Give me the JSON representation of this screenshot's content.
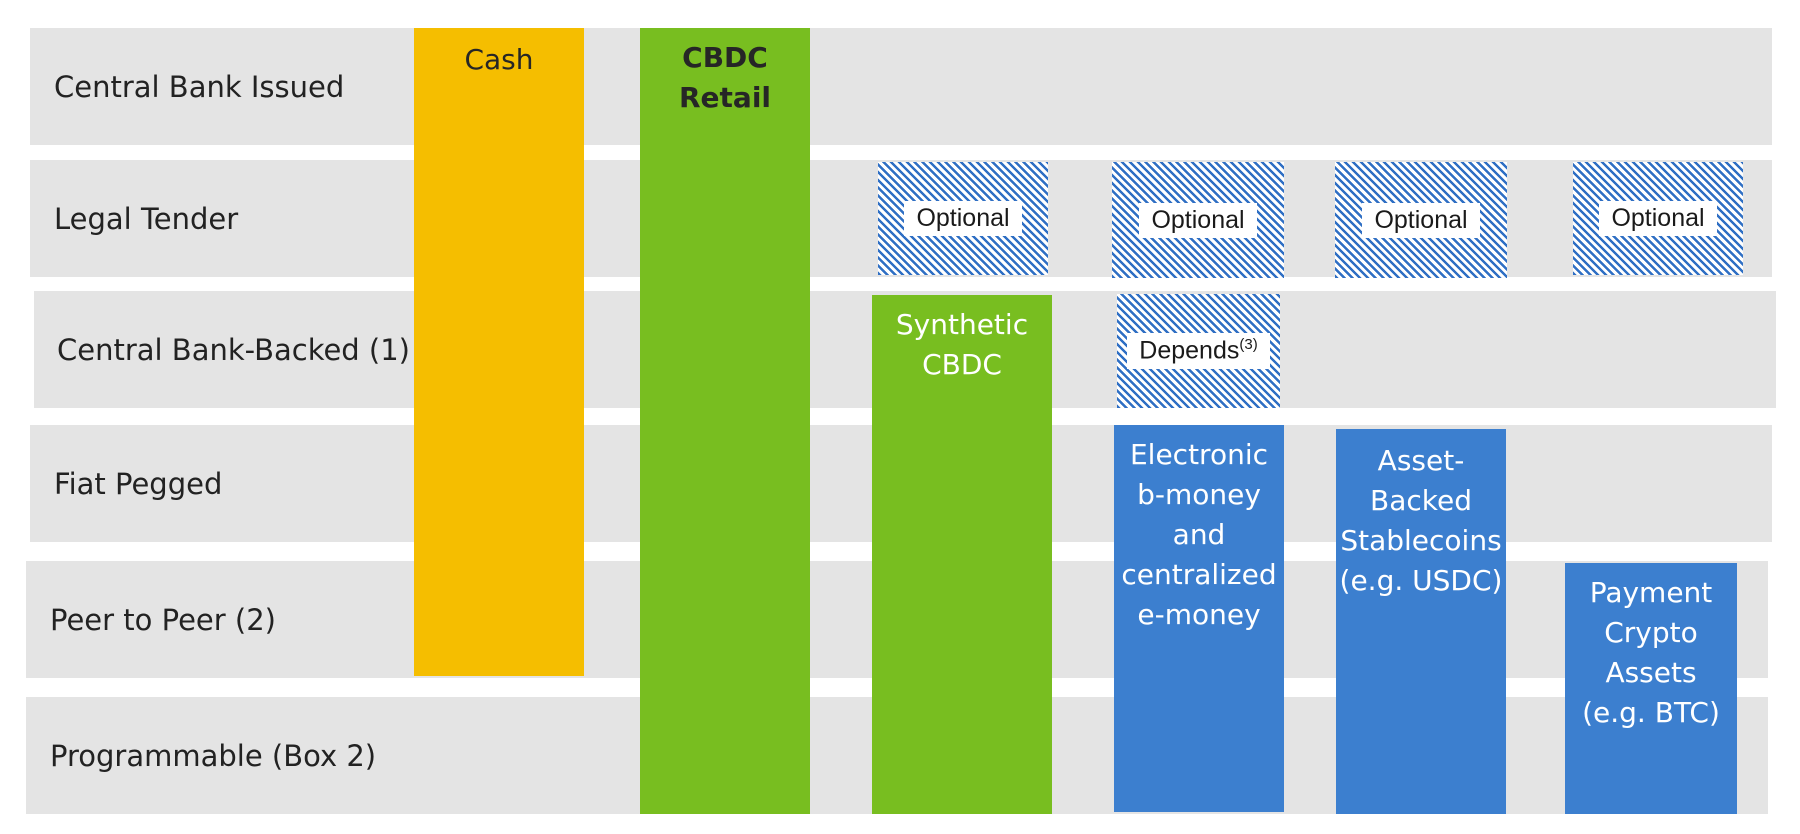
{
  "rows": [
    {
      "key": "issued",
      "label": "Central Bank Issued"
    },
    {
      "key": "legal",
      "label": "Legal Tender"
    },
    {
      "key": "backed",
      "label": "Central Bank-Backed (1)"
    },
    {
      "key": "pegged",
      "label": "Fiat Pegged"
    },
    {
      "key": "p2p",
      "label": "Peer to Peer (2)"
    },
    {
      "key": "prog",
      "label": "Programmable (Box 2)"
    }
  ],
  "columns": {
    "cash": {
      "label": "Cash",
      "color": "#f5be00"
    },
    "cbdc_retail": {
      "line1": "CBDC",
      "line2": "Retail",
      "color": "#78be20"
    },
    "synthetic_cbdc": {
      "line1": "Synthetic",
      "line2": "CBDC",
      "color": "#78be20"
    },
    "emoney": {
      "lines": [
        "Electronic",
        "b-money",
        "and",
        "centralized",
        "e-money"
      ],
      "color": "#3c7fcf"
    },
    "stablecoins": {
      "lines": [
        "Asset-",
        "Backed",
        "Stablecoins",
        "(e.g. USDC)"
      ],
      "color": "#3c7fcf"
    },
    "crypto": {
      "lines": [
        "Payment",
        "Crypto",
        "Assets",
        "(e.g. BTC)"
      ],
      "color": "#3c7fcf"
    }
  },
  "markers": {
    "optional": "Optional",
    "depends": {
      "text": "Depends",
      "note": "(3)"
    }
  },
  "colors": {
    "band": "#e4e4e4",
    "hatch": "#2f6fc4"
  }
}
